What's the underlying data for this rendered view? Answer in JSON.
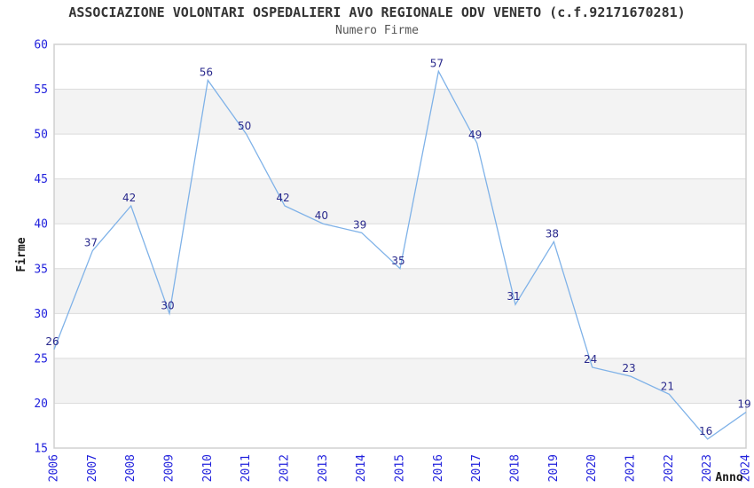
{
  "header": {
    "title": "ASSOCIAZIONE VOLONTARI OSPEDALIERI AVO REGIONALE ODV VENETO (c.f.92171670281)",
    "subtitle": "Numero Firme"
  },
  "chart_data": {
    "type": "line",
    "title": "ASSOCIAZIONE VOLONTARI OSPEDALIERI AVO REGIONALE ODV VENETO (c.f.92171670281)",
    "subtitle": "Numero Firme",
    "xlabel": "Anno",
    "ylabel": "Firme",
    "categories": [
      "2006",
      "2007",
      "2008",
      "2009",
      "2010",
      "2011",
      "2012",
      "2013",
      "2014",
      "2015",
      "2016",
      "2017",
      "2018",
      "2019",
      "2020",
      "2021",
      "2022",
      "2023",
      "2024"
    ],
    "values": [
      26,
      37,
      42,
      30,
      56,
      50,
      42,
      40,
      39,
      35,
      57,
      49,
      31,
      38,
      24,
      23,
      21,
      16,
      19
    ],
    "data_labels_visible": true,
    "ylim": [
      15,
      60
    ],
    "ytick_step": 5,
    "yticks": [
      15,
      20,
      25,
      30,
      35,
      40,
      45,
      50,
      55,
      60
    ],
    "grid": "horizontal-lines-with-alternating-bands",
    "legend": "none",
    "markers": "none",
    "colors": {
      "line": "#7fb2e8",
      "tick_label": "#2222dd",
      "data_label": "#28288c",
      "band_fill": "#f3f3f3",
      "grid_line": "#dcdcdc",
      "plot_border": "#d0d0d0",
      "title_text": "#333333",
      "subtitle_text": "#555555",
      "axis_title_text": "#1a1a1a",
      "background": "#ffffff"
    }
  }
}
